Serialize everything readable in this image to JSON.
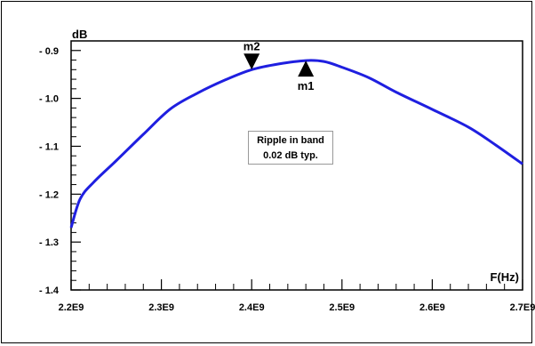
{
  "chart_data": {
    "type": "line",
    "xlabel": "F(Hz)",
    "ylabel": "dB",
    "xlim": [
      2200000000.0,
      2700000000.0
    ],
    "ylim": [
      -1.4,
      -0.88
    ],
    "x_ticks": [
      2200000000.0,
      2300000000.0,
      2400000000.0,
      2500000000.0,
      2600000000.0,
      2700000000.0
    ],
    "x_tick_labels": [
      "2.2E9",
      "2.3E9",
      "2.4E9",
      "2.5E9",
      "2.6E9",
      "2.7E9"
    ],
    "y_ticks": [
      -0.9,
      -1.0,
      -1.1,
      -1.2,
      -1.3,
      -1.4
    ],
    "y_tick_labels": [
      "- 0.9",
      "- 1.0",
      "- 1.1",
      "- 1.2",
      "- 1.3",
      "- 1.4"
    ],
    "grid": false,
    "color": "#1f1fe0",
    "series": [
      {
        "x": [
          2200000000.0,
          2210000000.0,
          2225000000.0,
          2250000000.0,
          2280000000.0,
          2310000000.0,
          2340000000.0,
          2370000000.0,
          2400000000.0,
          2430000000.0,
          2460000000.0,
          2480000000.0,
          2500000000.0,
          2530000000.0,
          2560000000.0,
          2600000000.0,
          2640000000.0,
          2670000000.0,
          2700000000.0
        ],
        "y": [
          -1.27,
          -1.21,
          -1.175,
          -1.13,
          -1.075,
          -1.022,
          -0.989,
          -0.962,
          -0.94,
          -0.928,
          -0.921,
          -0.923,
          -0.935,
          -0.957,
          -0.987,
          -1.023,
          -1.06,
          -1.097,
          -1.137
        ]
      }
    ],
    "markers": [
      {
        "name": "m2",
        "x": 2400000000.0,
        "y": -0.94,
        "direction": "down"
      },
      {
        "name": "m1",
        "x": 2460000000.0,
        "y": -0.921,
        "direction": "up"
      }
    ],
    "annotation": [
      "Ripple in band",
      "0.02 dB typ."
    ]
  }
}
